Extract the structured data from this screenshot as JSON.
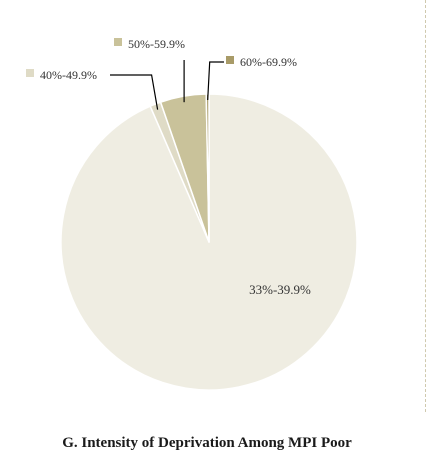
{
  "chart_data": {
    "type": "pie",
    "title": "G. Intensity of Deprivation Among MPI Poor",
    "categories": [
      "33%-39.9%",
      "40%-49.9%",
      "50%-59.9%",
      "60%-69.9%"
    ],
    "values": [
      93.5,
      1.2,
      5.0,
      0.3
    ],
    "colors": [
      "#efede2",
      "#dfdbc6",
      "#c9c29a",
      "#a89b68"
    ],
    "edge_color": "#ffffff",
    "leader_color": "#000000",
    "grid": false,
    "legend": "none"
  }
}
